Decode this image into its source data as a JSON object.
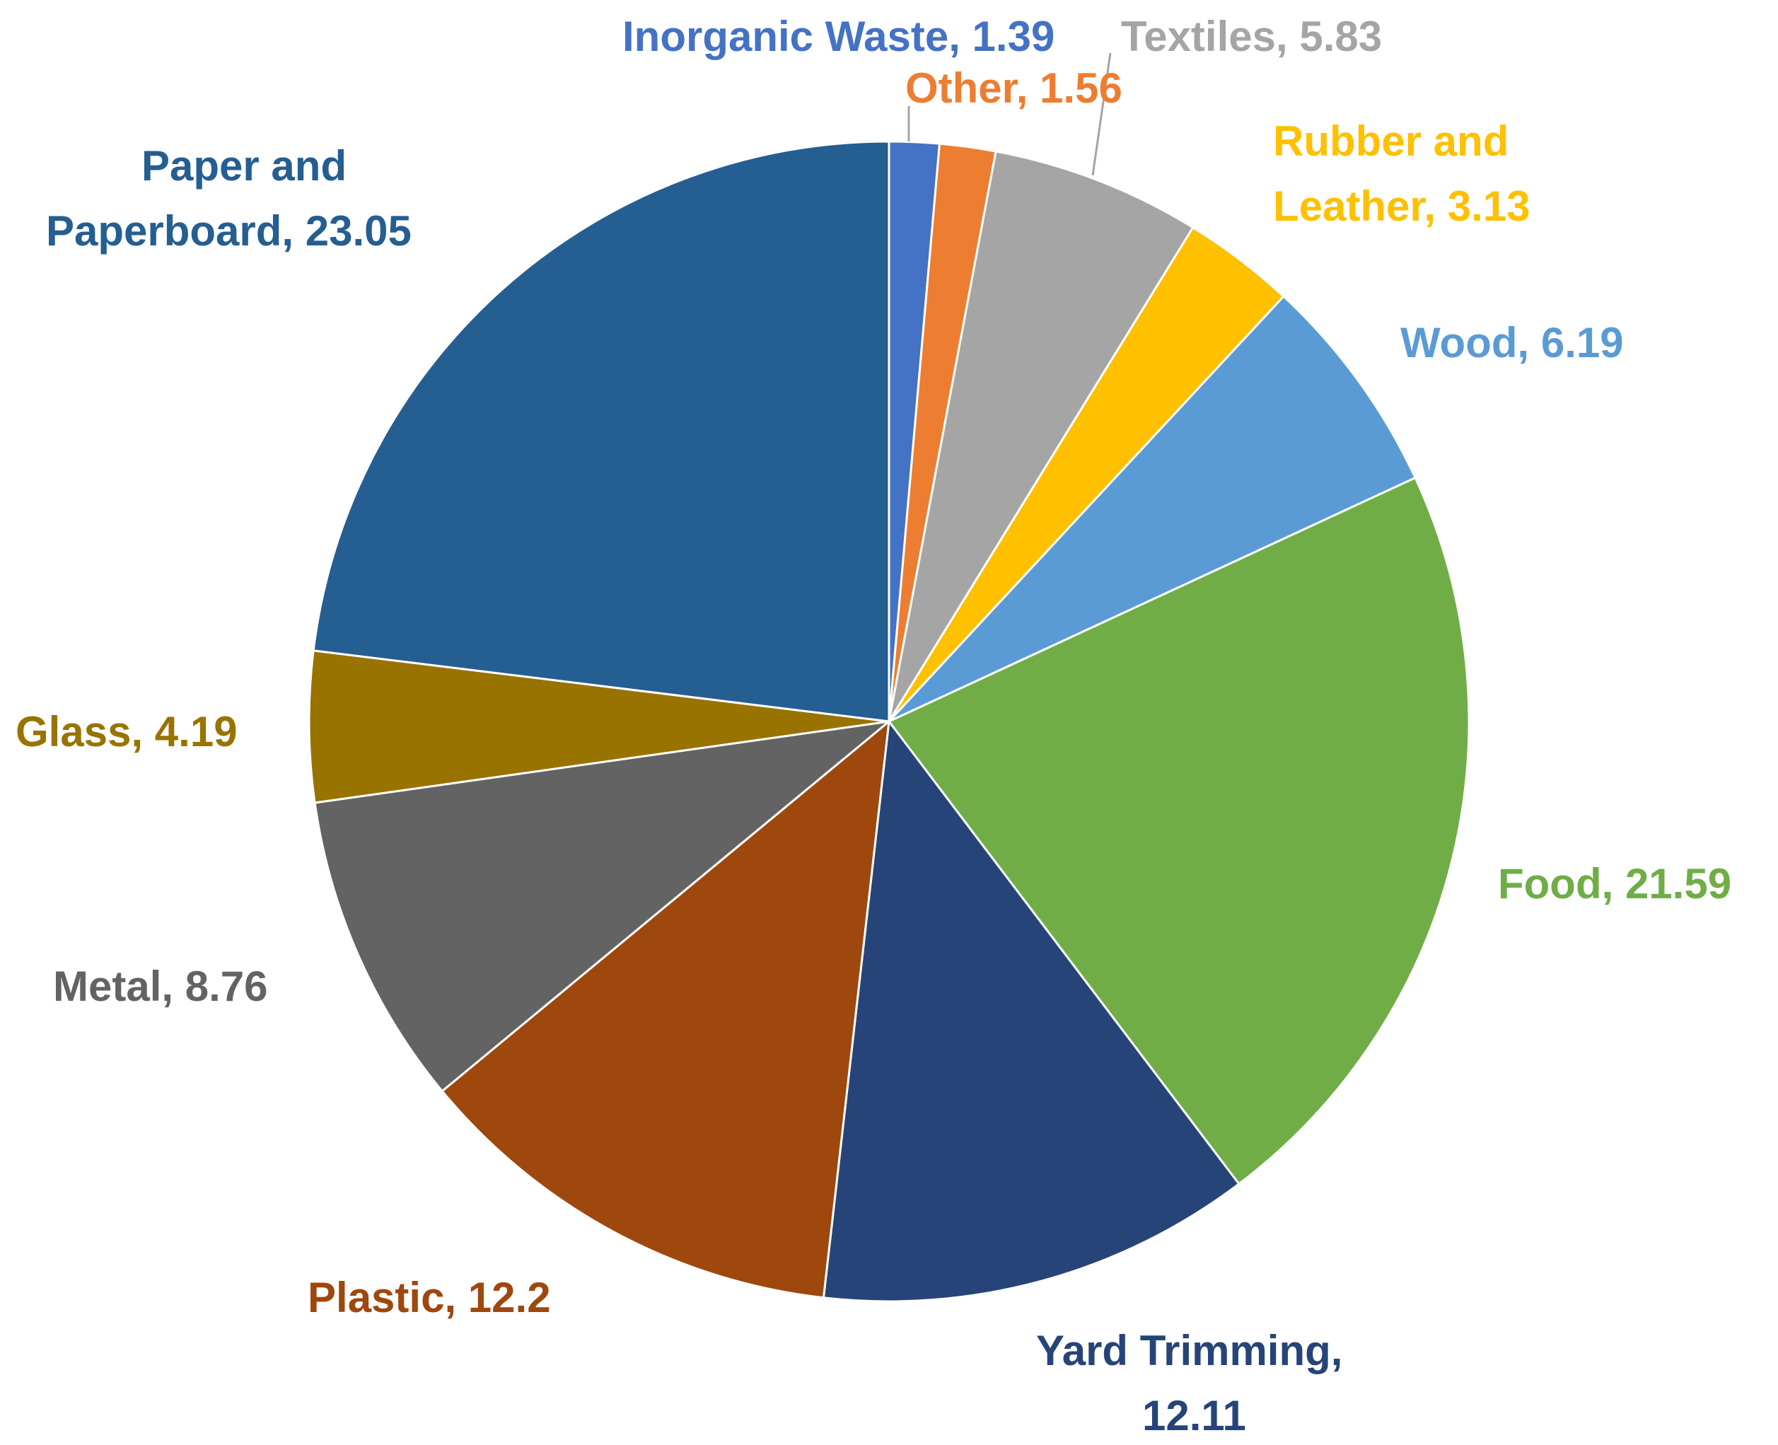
{
  "chart_data": {
    "type": "pie",
    "title": "",
    "start_angle_deg": 0,
    "direction": "clockwise",
    "slices": [
      {
        "name": "Inorganic Waste",
        "value": 1.39,
        "label": "Inorganic Waste, 1.39",
        "color": "#4472C4"
      },
      {
        "name": "Other",
        "value": 1.56,
        "label": "Other, 1.56",
        "color": "#ED7D31"
      },
      {
        "name": "Textiles",
        "value": 5.83,
        "label": "Textiles, 5.83",
        "color": "#A5A5A5"
      },
      {
        "name": "Rubber and Leather",
        "value": 3.13,
        "label": [
          "Rubber and",
          "Leather, 3.13"
        ],
        "color": "#FFC000"
      },
      {
        "name": "Wood",
        "value": 6.19,
        "label": "Wood, 6.19",
        "color": "#5B9BD5"
      },
      {
        "name": "Food",
        "value": 21.59,
        "label": "Food, 21.59",
        "color": "#70AD47"
      },
      {
        "name": "Yard Trimming",
        "value": 12.11,
        "label": [
          "Yard Trimming,",
          "12.11"
        ],
        "color": "#264478"
      },
      {
        "name": "Plastic",
        "value": 12.2,
        "label": "Plastic, 12.2",
        "color": "#9E480E"
      },
      {
        "name": "Metal",
        "value": 8.76,
        "label": "Metal, 8.76",
        "color": "#636363"
      },
      {
        "name": "Glass",
        "value": 4.19,
        "label": "Glass, 4.19",
        "color": "#997300"
      },
      {
        "name": "Paper and Paperboard",
        "value": 23.05,
        "label": [
          "Paper and",
          "Paperboard, 23.05"
        ],
        "color": "#255E91"
      }
    ]
  }
}
